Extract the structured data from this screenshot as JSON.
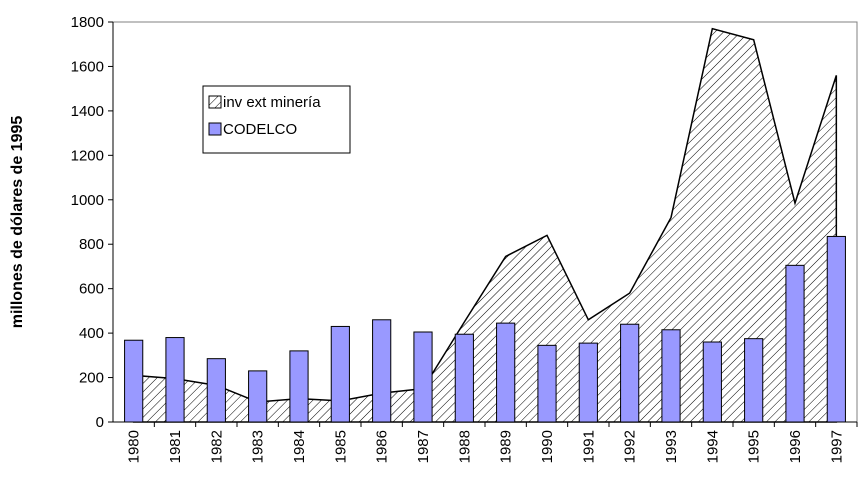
{
  "chart_data": {
    "type": "bar",
    "y_label": "millones de dólares de 1995",
    "categories": [
      "1980",
      "1981",
      "1982",
      "1983",
      "1984",
      "1985",
      "1986",
      "1987",
      "1988",
      "1989",
      "1990",
      "1991",
      "1992",
      "1993",
      "1994",
      "1995",
      "1996",
      "1997"
    ],
    "series": [
      {
        "name": "inv ext minería",
        "type": "area",
        "color": "#000000",
        "values": [
          210,
          195,
          165,
          90,
          105,
          95,
          130,
          150,
          450,
          745,
          840,
          460,
          580,
          920,
          1770,
          1720,
          985,
          1560
        ]
      },
      {
        "name": "CODELCO",
        "type": "bar",
        "color": "#9999ff",
        "values": [
          368,
          380,
          285,
          230,
          320,
          430,
          460,
          405,
          395,
          445,
          345,
          355,
          440,
          415,
          360,
          375,
          705,
          835
        ]
      }
    ],
    "ylim": [
      0,
      1800
    ],
    "yticks": [
      0,
      200,
      400,
      600,
      800,
      1000,
      1200,
      1400,
      1600,
      1800
    ]
  }
}
